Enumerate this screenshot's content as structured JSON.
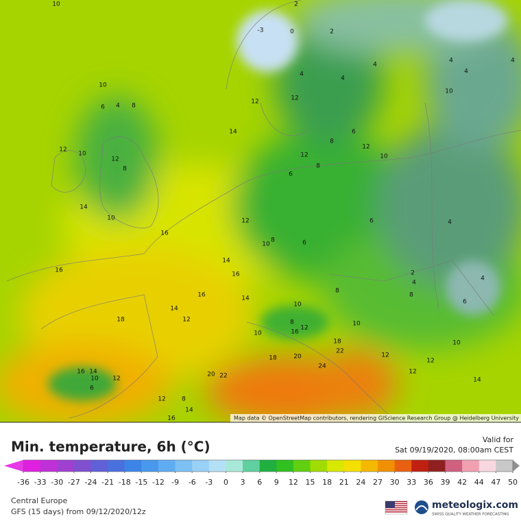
{
  "header": {
    "title": "Min. temperature, 6h (°C)",
    "valid_label": "Valid for",
    "valid_time": "Sat 09/19/2020, 08:00am CEST"
  },
  "map": {
    "attribution": "Map data © OpenStreetMap contributors, rendering GIScience Research Group @ Heidelberg University",
    "contour_labels": [
      10,
      2,
      -3,
      0,
      2,
      4,
      4,
      4,
      4,
      4,
      4,
      10,
      10,
      4,
      6,
      8,
      12,
      12,
      14,
      8,
      6,
      12,
      10,
      12,
      10,
      12,
      8,
      12,
      8,
      6,
      14,
      10,
      16,
      12,
      6,
      4,
      8,
      10,
      6,
      14,
      16,
      16,
      2,
      4,
      4,
      16,
      14,
      8,
      8,
      6,
      14,
      10,
      12,
      18,
      8,
      10,
      10,
      16,
      12,
      18,
      22,
      10,
      12,
      18,
      20,
      12,
      16,
      14,
      10,
      12,
      6,
      20,
      22,
      24,
      12,
      14,
      12,
      8,
      14,
      16
    ]
  },
  "colorbar": {
    "ticks": [
      -36,
      -33,
      -30,
      -27,
      -24,
      -21,
      -18,
      -15,
      -12,
      -9,
      -6,
      -3,
      0,
      3,
      6,
      9,
      12,
      15,
      18,
      21,
      24,
      27,
      30,
      33,
      36,
      39,
      42,
      44,
      47,
      50
    ],
    "colors": [
      "#e020e0",
      "#c030d8",
      "#a040d0",
      "#8050d0",
      "#6060d8",
      "#4a70e0",
      "#3c84e8",
      "#4898ee",
      "#60acf2",
      "#7cc0f4",
      "#98d0f6",
      "#b4e0f6",
      "#a8e8d8",
      "#60d0a0",
      "#20b040",
      "#30c020",
      "#60d010",
      "#a0dc00",
      "#d8e800",
      "#f4e000",
      "#f4b800",
      "#f09000",
      "#e86010",
      "#c02010",
      "#902020",
      "#d06080",
      "#f0a0b0",
      "#f8d8e0",
      "#c8c8c8"
    ],
    "low_color": "#e838e8",
    "high_color": "#909090"
  },
  "footer": {
    "region": "Central Europe",
    "model": "GFS (15 days) from  09/12/2020/12z",
    "brand": "meteologix.com",
    "tagline": "SWISS QUALITY WEATHER FORECASTING"
  }
}
